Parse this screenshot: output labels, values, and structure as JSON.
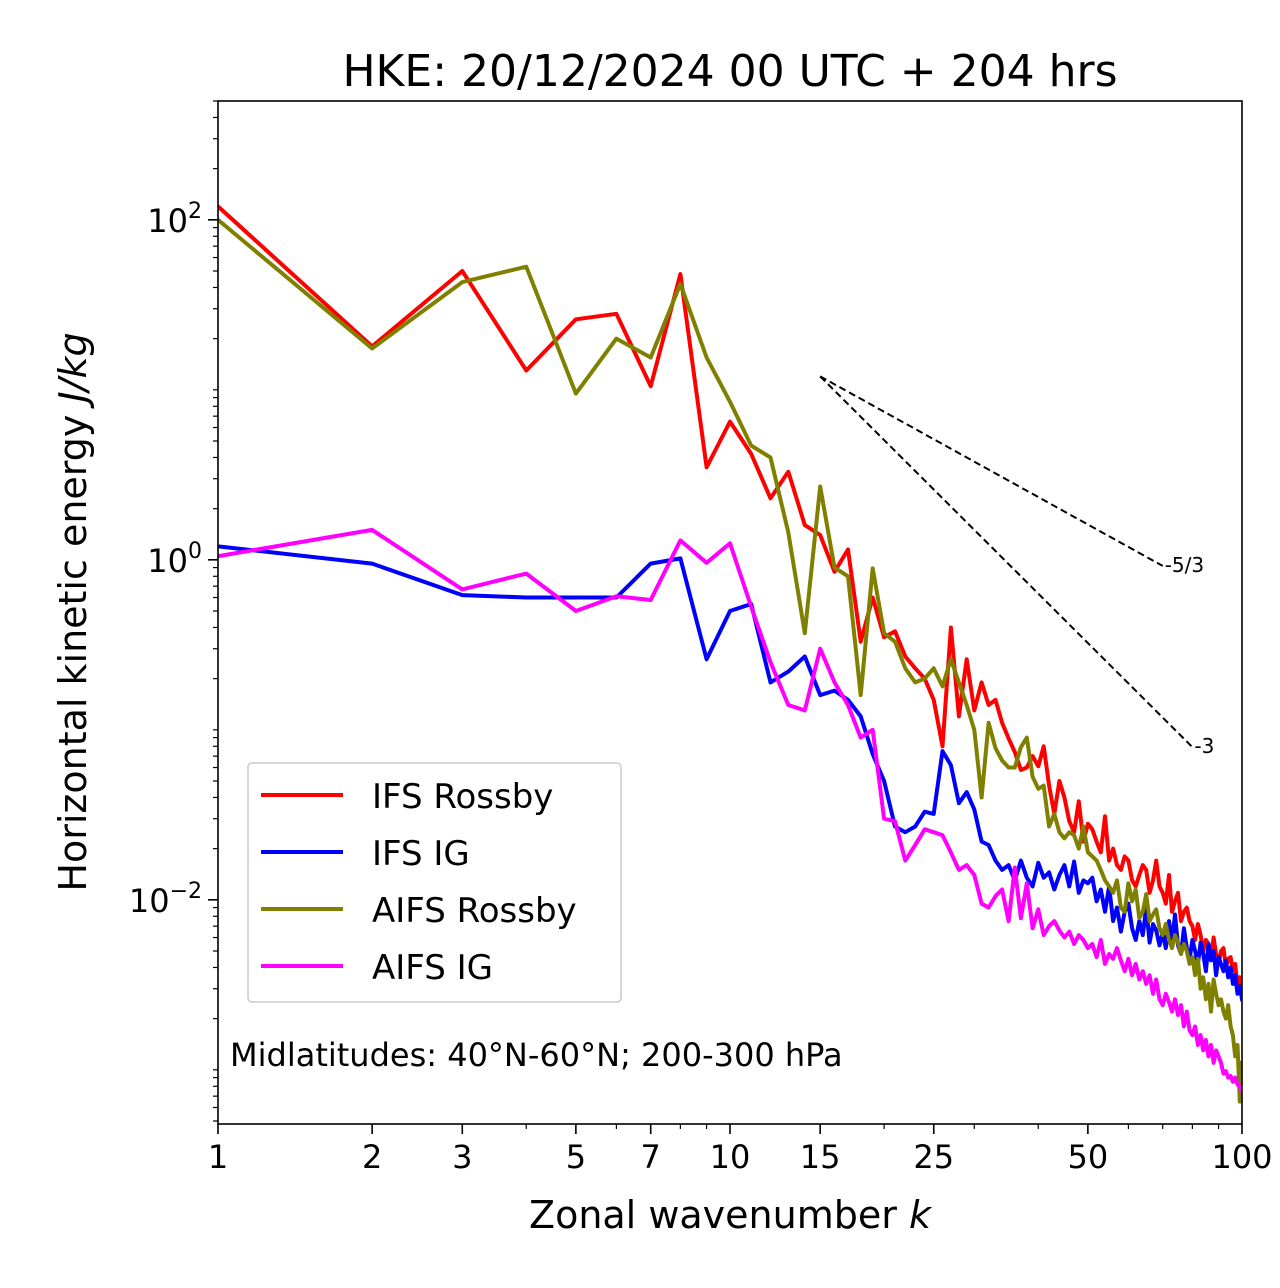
{
  "chart_data": {
    "type": "line",
    "title": "HKE: 20/12/2024 00 UTC + 204 hrs",
    "xlabel": "Zonal wavenumber",
    "xlabel_italic": "k",
    "ylabel": "Horizontal kinetic energy",
    "ylabel_italic": "J/kg",
    "xscale": "log",
    "yscale": "log",
    "xlim": [
      1,
      100
    ],
    "ylim": [
      0.00048,
      500
    ],
    "xticks": [
      1,
      2,
      3,
      5,
      7,
      10,
      15,
      25,
      50,
      100
    ],
    "xtick_labels": [
      "1",
      "2",
      "3",
      "5",
      "7",
      "10",
      "15",
      "25",
      "50",
      "100"
    ],
    "yticks": [
      {
        "value": 100,
        "base": "10",
        "exp": "2"
      },
      {
        "value": 1,
        "base": "10",
        "exp": "0"
      },
      {
        "value": 0.01,
        "base": "10",
        "exp": "−2"
      }
    ],
    "grid": false,
    "legend_position": "lower-left",
    "annotation": "Midlatitudes: 40°N-60°N; 200-300 hPa",
    "reference_lines": [
      {
        "label": "-5/3",
        "slope": -1.6667,
        "x_start": 15,
        "y_start": 12,
        "x_end": 70
      },
      {
        "label": "-3",
        "slope": -3,
        "x_start": 15,
        "y_start": 12,
        "x_end": 80
      }
    ],
    "series": [
      {
        "name": "IFS Rossby",
        "color": "#ff0000",
        "x": [
          1,
          2,
          3,
          4,
          5,
          6,
          7,
          8,
          9,
          10,
          11,
          12,
          13,
          14,
          15,
          16,
          17,
          18,
          19,
          20,
          21,
          22,
          23,
          24,
          25,
          26,
          27,
          28,
          29,
          30,
          31,
          32,
          33,
          34,
          35,
          36,
          37,
          38,
          39,
          40,
          41,
          42,
          43,
          44,
          45,
          46,
          47,
          48,
          49,
          50,
          51,
          52,
          53,
          54,
          55,
          56,
          57,
          58,
          59,
          60,
          61,
          62,
          63,
          64,
          65,
          66,
          67,
          68,
          69,
          70,
          71,
          72,
          73,
          74,
          75,
          76,
          77,
          78,
          79,
          80,
          81,
          82,
          83,
          84,
          85,
          86,
          87,
          88,
          89,
          90,
          91,
          92,
          93,
          94,
          95,
          96,
          97,
          98,
          99,
          100
        ],
        "y": [
          120,
          18,
          50,
          13,
          26,
          28,
          10.5,
          48,
          3.5,
          6.5,
          4.2,
          2.3,
          3.3,
          1.6,
          1.4,
          0.85,
          1.15,
          0.33,
          0.6,
          0.35,
          0.38,
          0.27,
          0.23,
          0.2,
          0.15,
          0.08,
          0.4,
          0.12,
          0.26,
          0.13,
          0.19,
          0.14,
          0.15,
          0.11,
          0.089,
          0.074,
          0.058,
          0.06,
          0.07,
          0.061,
          0.08,
          0.047,
          0.032,
          0.05,
          0.04,
          0.029,
          0.025,
          0.038,
          0.022,
          0.028,
          0.026,
          0.022,
          0.019,
          0.031,
          0.017,
          0.02,
          0.016,
          0.015,
          0.018,
          0.017,
          0.013,
          0.012,
          0.014,
          0.016,
          0.015,
          0.011,
          0.013,
          0.017,
          0.012,
          0.011,
          0.0095,
          0.014,
          0.0085,
          0.0098,
          0.011,
          0.0075,
          0.0085,
          0.009,
          0.0075,
          0.007,
          0.0058,
          0.0072,
          0.0062,
          0.005,
          0.0058,
          0.0055,
          0.0045,
          0.006,
          0.0048,
          0.0042,
          0.005,
          0.0052,
          0.004,
          0.0045,
          0.0046,
          0.0038,
          0.0042,
          0.0031,
          0.0035,
          0.0032
        ]
      },
      {
        "name": "IFS IG",
        "color": "#0000ff",
        "x": [
          1,
          2,
          3,
          4,
          5,
          6,
          7,
          8,
          9,
          10,
          11,
          12,
          13,
          14,
          15,
          16,
          17,
          18,
          19,
          20,
          21,
          22,
          23,
          24,
          25,
          26,
          27,
          28,
          29,
          30,
          31,
          32,
          33,
          34,
          35,
          36,
          37,
          38,
          39,
          40,
          41,
          42,
          43,
          44,
          45,
          46,
          47,
          48,
          49,
          50,
          51,
          52,
          53,
          54,
          55,
          56,
          57,
          58,
          59,
          60,
          61,
          62,
          63,
          64,
          65,
          66,
          67,
          68,
          69,
          70,
          71,
          72,
          73,
          74,
          75,
          76,
          77,
          78,
          79,
          80,
          81,
          82,
          83,
          84,
          85,
          86,
          87,
          88,
          89,
          90,
          91,
          92,
          93,
          94,
          95,
          96,
          97,
          98,
          99,
          100
        ],
        "y": [
          1.2,
          0.95,
          0.62,
          0.6,
          0.6,
          0.6,
          0.95,
          1.02,
          0.26,
          0.5,
          0.55,
          0.19,
          0.22,
          0.27,
          0.16,
          0.17,
          0.15,
          0.12,
          0.072,
          0.05,
          0.027,
          0.025,
          0.027,
          0.033,
          0.032,
          0.075,
          0.062,
          0.037,
          0.043,
          0.034,
          0.022,
          0.021,
          0.017,
          0.015,
          0.016,
          0.013,
          0.017,
          0.0135,
          0.012,
          0.0165,
          0.0135,
          0.0145,
          0.0115,
          0.014,
          0.016,
          0.012,
          0.0168,
          0.011,
          0.013,
          0.0125,
          0.0135,
          0.0098,
          0.0115,
          0.0085,
          0.012,
          0.0075,
          0.009,
          0.0065,
          0.0085,
          0.0095,
          0.0068,
          0.0058,
          0.0075,
          0.0062,
          0.009,
          0.0056,
          0.0072,
          0.0066,
          0.0054,
          0.0064,
          0.0052,
          0.0075,
          0.0056,
          0.0082,
          0.0054,
          0.0048,
          0.0068,
          0.0052,
          0.0045,
          0.0058,
          0.005,
          0.0042,
          0.0056,
          0.0048,
          0.0038,
          0.0055,
          0.0044,
          0.005,
          0.0036,
          0.0046,
          0.0042,
          0.0038,
          0.0044,
          0.0035,
          0.004,
          0.0032,
          0.0036,
          0.0028,
          0.0031,
          0.0026
        ]
      },
      {
        "name": "AIFS Rossby",
        "color": "#808000",
        "x": [
          1,
          2,
          3,
          4,
          5,
          6,
          7,
          8,
          9,
          10,
          11,
          12,
          13,
          14,
          15,
          16,
          17,
          18,
          19,
          20,
          21,
          22,
          23,
          24,
          25,
          26,
          27,
          28,
          29,
          30,
          31,
          32,
          33,
          34,
          35,
          36,
          37,
          38,
          39,
          40,
          41,
          42,
          43,
          44,
          45,
          46,
          47,
          48,
          49,
          50,
          51,
          52,
          53,
          54,
          55,
          56,
          57,
          58,
          59,
          60,
          61,
          62,
          63,
          64,
          65,
          66,
          67,
          68,
          69,
          70,
          71,
          72,
          73,
          74,
          75,
          76,
          77,
          78,
          79,
          80,
          81,
          82,
          83,
          84,
          85,
          86,
          87,
          88,
          89,
          90,
          91,
          92,
          93,
          94,
          95,
          96,
          97,
          98,
          99,
          100
        ],
        "y": [
          100,
          17.5,
          43,
          53,
          9.5,
          20,
          15.5,
          42,
          15.5,
          8.5,
          4.7,
          4,
          1.45,
          0.37,
          2.7,
          0.9,
          0.8,
          0.16,
          0.89,
          0.37,
          0.33,
          0.23,
          0.19,
          0.2,
          0.23,
          0.18,
          0.26,
          0.19,
          0.14,
          0.1,
          0.04,
          0.11,
          0.078,
          0.066,
          0.06,
          0.06,
          0.079,
          0.09,
          0.053,
          0.045,
          0.047,
          0.027,
          0.032,
          0.025,
          0.023,
          0.025,
          0.024,
          0.02,
          0.027,
          0.019,
          0.018,
          0.017,
          0.015,
          0.013,
          0.012,
          0.011,
          0.013,
          0.009,
          0.0085,
          0.0125,
          0.0098,
          0.0115,
          0.0078,
          0.0085,
          0.0108,
          0.0075,
          0.0082,
          0.0088,
          0.0068,
          0.0062,
          0.0072,
          0.0058,
          0.0052,
          0.0062,
          0.0056,
          0.0048,
          0.0055,
          0.005,
          0.0042,
          0.0046,
          0.0036,
          0.0045,
          0.003,
          0.0035,
          0.0026,
          0.0032,
          0.0022,
          0.0034,
          0.0028,
          0.0024,
          0.0026,
          0.0022,
          0.002,
          0.0024,
          0.0018,
          0.0016,
          0.0012,
          0.0014,
          0.00065,
          0.0011
        ]
      },
      {
        "name": "AIFS IG",
        "color": "#ff00ff",
        "x": [
          1,
          2,
          3,
          4,
          5,
          6,
          7,
          8,
          9,
          10,
          11,
          12,
          13,
          14,
          15,
          16,
          17,
          18,
          19,
          20,
          21,
          22,
          23,
          24,
          25,
          26,
          27,
          28,
          29,
          30,
          31,
          32,
          33,
          34,
          35,
          36,
          37,
          38,
          39,
          40,
          41,
          42,
          43,
          44,
          45,
          46,
          47,
          48,
          49,
          50,
          51,
          52,
          53,
          54,
          55,
          56,
          57,
          58,
          59,
          60,
          61,
          62,
          63,
          64,
          65,
          66,
          67,
          68,
          69,
          70,
          71,
          72,
          73,
          74,
          75,
          76,
          77,
          78,
          79,
          80,
          81,
          82,
          83,
          84,
          85,
          86,
          87,
          88,
          89,
          90,
          91,
          92,
          93,
          94,
          95,
          96,
          97,
          98,
          99,
          100
        ],
        "y": [
          1.05,
          1.5,
          0.67,
          0.83,
          0.5,
          0.61,
          0.58,
          1.3,
          0.96,
          1.25,
          0.53,
          0.25,
          0.14,
          0.13,
          0.3,
          0.19,
          0.14,
          0.09,
          0.1,
          0.03,
          0.029,
          0.017,
          0.021,
          0.026,
          0.025,
          0.024,
          0.019,
          0.015,
          0.016,
          0.014,
          0.0095,
          0.009,
          0.0105,
          0.0115,
          0.0075,
          0.0155,
          0.0078,
          0.0125,
          0.0068,
          0.0088,
          0.0062,
          0.007,
          0.0075,
          0.0066,
          0.006,
          0.0065,
          0.0055,
          0.0062,
          0.0058,
          0.0052,
          0.0055,
          0.0046,
          0.0058,
          0.0042,
          0.0048,
          0.0045,
          0.0052,
          0.0044,
          0.0038,
          0.0045,
          0.0036,
          0.0042,
          0.0034,
          0.0038,
          0.0032,
          0.0036,
          0.0028,
          0.0034,
          0.0026,
          0.0024,
          0.0028,
          0.0025,
          0.0022,
          0.0026,
          0.0021,
          0.0024,
          0.0018,
          0.0022,
          0.0017,
          0.0016,
          0.0018,
          0.0014,
          0.0016,
          0.0013,
          0.0015,
          0.0012,
          0.0014,
          0.0011,
          0.0013,
          0.0012,
          0.0011,
          0.00095,
          0.00098,
          0.0009,
          0.00092,
          0.00085,
          0.0009,
          0.00082,
          0.0008,
          0.00075
        ]
      }
    ]
  }
}
